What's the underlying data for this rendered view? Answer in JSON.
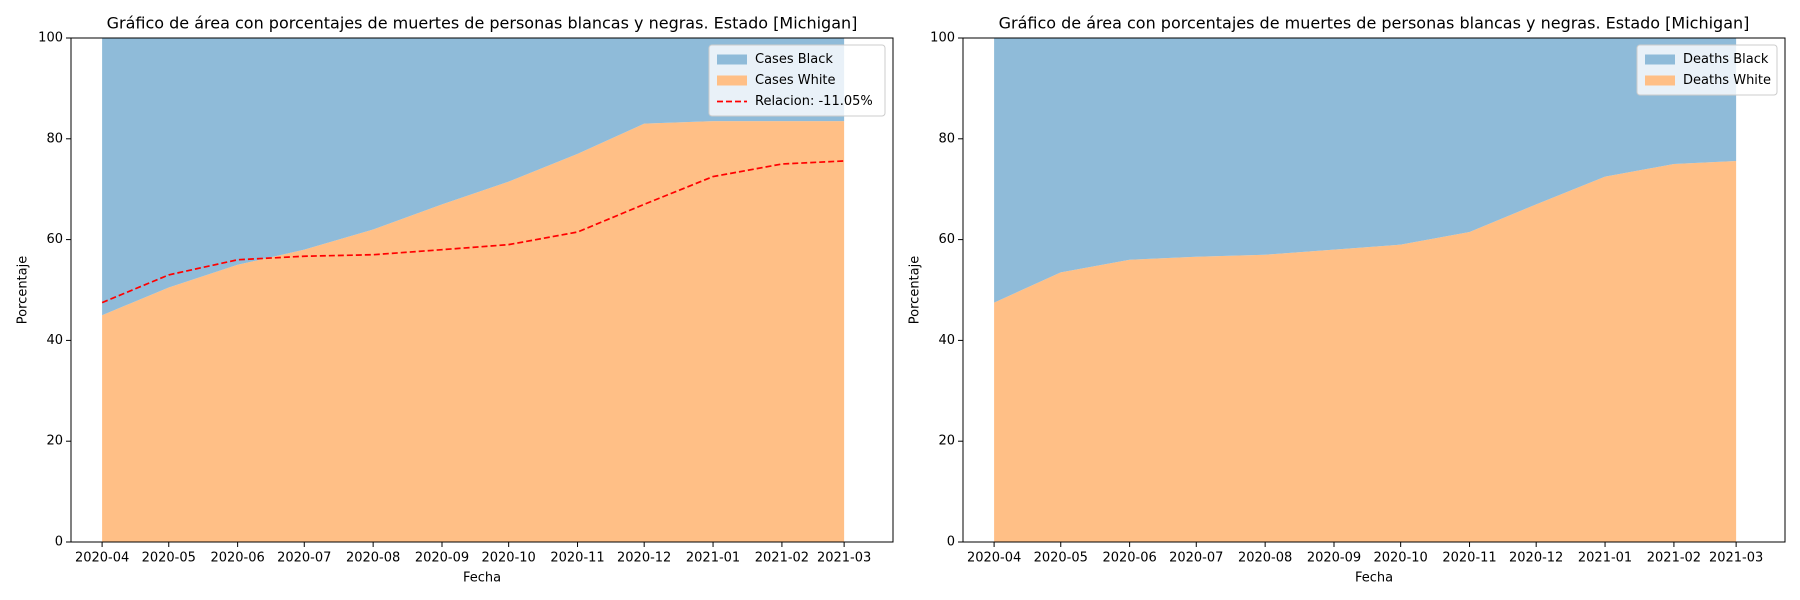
{
  "chart_data": [
    {
      "type": "stacked_area",
      "title": "Gráfico de área con porcentajes de muertes de personas blancas y negras. Estado [Michigan]",
      "x_label": "Fecha",
      "y_label": "Porcentaje",
      "x": [
        "2020-04",
        "2020-05",
        "2020-06",
        "2020-07",
        "2020-08",
        "2020-09",
        "2020-10",
        "2020-11",
        "2020-12",
        "2021-01",
        "2021-02",
        "2021-03"
      ],
      "series": [
        {
          "name": "Cases Black",
          "color": "#8fbbd9",
          "values": [
            55,
            49.5,
            45,
            42,
            38,
            33,
            28.5,
            23,
            17,
            16.5,
            16.5,
            16.5
          ]
        },
        {
          "name": "Cases White",
          "color": "#ffbf86",
          "values": [
            45,
            50.5,
            55,
            58,
            62,
            67,
            71.5,
            77,
            83,
            83.5,
            83.5,
            83.5
          ]
        },
        {
          "name": "Relacion: -11.05%",
          "color": "#ff0000",
          "type": "line",
          "linestyle": "dashed",
          "values": [
            47.5,
            53,
            56,
            56.7,
            57,
            58,
            59,
            61.5,
            67,
            72.5,
            75,
            75.6
          ]
        }
      ],
      "ylim": [
        0,
        100
      ],
      "yticks": [
        0,
        20,
        40,
        60,
        80,
        100
      ],
      "xticks": [
        "2020-04",
        "2020-05",
        "2020-06",
        "2020-07",
        "2020-08",
        "2020-09",
        "2020-10",
        "2020-11",
        "2020-12",
        "2021-01",
        "2021-02",
        "2021-03"
      ],
      "legend": "upper right"
    },
    {
      "type": "stacked_area",
      "title": "Gráfico de área con porcentajes de muertes de personas blancas y negras. Estado [Michigan]",
      "x_label": "Fecha",
      "y_label": "Porcentaje",
      "x": [
        "2020-04",
        "2020-05",
        "2020-06",
        "2020-07",
        "2020-08",
        "2020-09",
        "2020-10",
        "2020-11",
        "2020-12",
        "2021-01",
        "2021-02",
        "2021-03"
      ],
      "series": [
        {
          "name": "Deaths Black",
          "color": "#8fbbd9",
          "values": [
            52.5,
            46.5,
            44,
            43.4,
            43,
            42,
            41,
            38.5,
            33,
            27.5,
            25,
            24.4
          ]
        },
        {
          "name": "Deaths White",
          "color": "#ffbf86",
          "values": [
            47.5,
            53.5,
            56,
            56.6,
            57,
            58,
            59,
            61.5,
            67,
            72.5,
            75,
            75.6
          ]
        }
      ],
      "ylim": [
        0,
        100
      ],
      "yticks": [
        0,
        20,
        40,
        60,
        80,
        100
      ],
      "xticks": [
        "2020-04",
        "2020-05",
        "2020-06",
        "2020-07",
        "2020-08",
        "2020-09",
        "2020-10",
        "2020-11",
        "2020-12",
        "2021-01",
        "2021-02",
        "2021-03"
      ],
      "legend": "upper right"
    }
  ]
}
